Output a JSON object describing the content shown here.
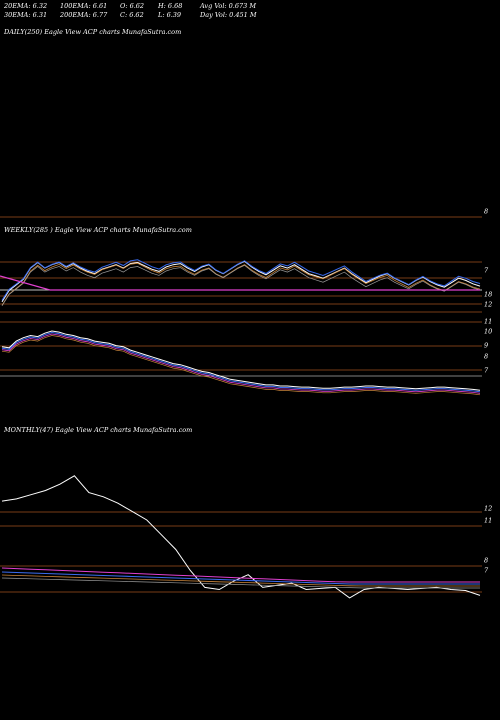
{
  "header": {
    "row1": [
      {
        "text": "20EMA: 6.32"
      },
      {
        "text": "100EMA: 6.61"
      },
      {
        "text": "O: 6.62"
      },
      {
        "text": "H: 6.68"
      },
      {
        "text": "Avg Vol: 0.673 M"
      }
    ],
    "row2": [
      {
        "text": "30EMA: 6.31"
      },
      {
        "text": "200EMA: 6.77"
      },
      {
        "text": "C: 6.62"
      },
      {
        "text": "L: 6.39"
      },
      {
        "text": "Day Vol: 0.451 M"
      }
    ]
  },
  "panels": {
    "daily": {
      "label": "DAILY(250) Eagle  View  ACP charts MunafaSutra.com"
    },
    "weekly": {
      "label": "WEEKLY(285                    ) Eagle  View  ACP charts MunafaSutra.com"
    },
    "monthly": {
      "label": "MONTHLY(47) Eagle  View  ACP charts MunafaSutra.com"
    }
  },
  "colors": {
    "background": "#000000",
    "price": "#ffffff",
    "ema_blue": "#3a6cf0",
    "ema_orange": "#c8843a",
    "ema_magenta": "#e040d0",
    "ema_gray": "#9a9a9a",
    "level_line": "#a0521e"
  },
  "chart_data": [
    {
      "type": "line",
      "title": "DAILY(250) Eagle  View  ACP charts MunafaSutra.com",
      "levels": [
        {
          "value": 8,
          "label": "8"
        }
      ],
      "series": []
    },
    {
      "type": "line",
      "title": "WEEKLY(285 ) Eagle  View  ACP charts MunafaSutra.com",
      "ylim": [
        6.2,
        20
      ],
      "levels": [
        {
          "value": 7,
          "label": "7"
        },
        {
          "value": 18,
          "label": "18"
        },
        {
          "value": 12,
          "label": "12"
        },
        {
          "value": 11,
          "label": "11"
        },
        {
          "value": 10,
          "label": "10"
        },
        {
          "value": 9,
          "label": "9"
        },
        {
          "value": 8,
          "label": "8"
        },
        {
          "value": 7,
          "label": "7"
        }
      ],
      "series": [
        {
          "values": [
            10.5,
            10.4,
            11.0,
            11.3,
            11.5,
            11.4,
            11.7,
            11.9,
            11.8,
            11.6,
            11.5,
            11.3,
            11.2,
            11.0,
            10.9,
            10.8,
            10.6,
            10.5,
            10.2,
            10.0,
            9.8,
            9.6,
            9.4,
            9.2,
            9.0,
            8.9,
            8.7,
            8.5,
            8.3,
            8.2,
            8.0,
            7.8,
            7.6,
            7.5,
            7.4,
            7.3,
            7.2,
            7.1,
            7.1,
            7.0,
            7.0,
            6.95,
            6.9,
            6.9,
            6.85,
            6.8,
            6.8,
            6.85,
            6.9,
            6.9,
            6.95,
            7.0,
            7.0,
            6.95,
            6.9,
            6.9,
            6.85,
            6.8,
            6.75,
            6.8,
            6.85,
            6.9,
            6.9,
            6.85,
            6.8,
            6.75,
            6.7,
            6.62
          ]
        },
        {
          "values": [
            14.5,
            15.5,
            16.0,
            16.5,
            17.5,
            18.0,
            17.5,
            17.8,
            18.0,
            17.6,
            17.9,
            17.5,
            17.2,
            17.0,
            17.4,
            17.6,
            17.8,
            17.5,
            17.9,
            18.0,
            17.7,
            17.4,
            17.2,
            17.6,
            17.8,
            17.9,
            17.5,
            17.2,
            17.6,
            17.8,
            17.3,
            17.0,
            17.4,
            17.8,
            18.1,
            17.6,
            17.2,
            16.9,
            17.3,
            17.7,
            17.5,
            17.8,
            17.4,
            17.0,
            16.8,
            16.6,
            16.9,
            17.2,
            17.5,
            17.0,
            16.6,
            16.2,
            16.5,
            16.8,
            17.0,
            16.6,
            16.3,
            16.0,
            16.4,
            16.7,
            16.3,
            16.0,
            15.8,
            16.2,
            16.6,
            16.4,
            16.1,
            15.9
          ]
        }
      ]
    },
    {
      "type": "line",
      "title": "MONTHLY(47) Eagle  View  ACP charts MunafaSutra.com",
      "ylim": [
        6.4,
        14
      ],
      "levels": [
        {
          "value": 12,
          "label": "12"
        },
        {
          "value": 11,
          "label": "11"
        },
        {
          "value": 8,
          "label": "8"
        },
        {
          "value": 7,
          "label": "7"
        }
      ],
      "series": [
        {
          "values": [
            11.1,
            11.2,
            11.4,
            11.6,
            11.9,
            12.3,
            11.5,
            11.3,
            11.0,
            10.6,
            10.2,
            9.5,
            8.8,
            7.8,
            7.0,
            6.9,
            7.3,
            7.6,
            7.0,
            7.1,
            7.2,
            6.9,
            6.95,
            7.0,
            6.5,
            6.9,
            7.0,
            6.95,
            6.9,
            6.95,
            7.0,
            6.9,
            6.85,
            6.62
          ]
        }
      ]
    }
  ]
}
